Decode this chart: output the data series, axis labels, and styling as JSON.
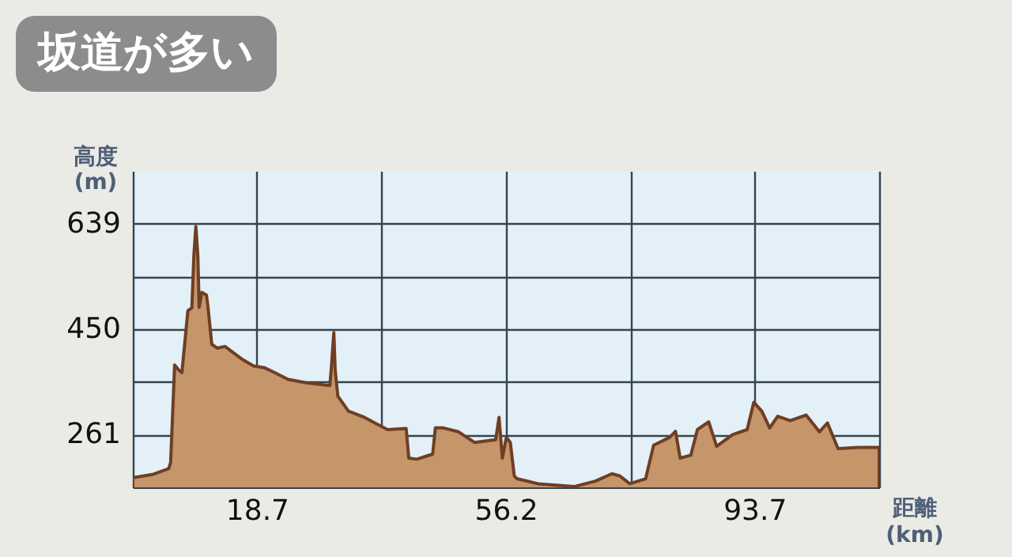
{
  "chart_data": {
    "type": "area",
    "title": "坂道が多い",
    "xlabel": "距離 (km)",
    "ylabel": "高度 (m)",
    "x": [
      0,
      3.1,
      5.4,
      5.7,
      6.3,
      6.9,
      7.4,
      8.3,
      8.9,
      9.2,
      9.5,
      9.8,
      10.0,
      10.4,
      11.1,
      11.3,
      11.9,
      12.7,
      13.9,
      15.0,
      16.6,
      18.2,
      19.8,
      21.4,
      23.4,
      26.1,
      29.7,
      29.9,
      30.3,
      30.5,
      30.9,
      32.5,
      34.9,
      36.8,
      38.4,
      41.2,
      41.6,
      42.8,
      45.2,
      45.6,
      46.8,
      49.1,
      51.5,
      54.7,
      55.2,
      55.7,
      56.3,
      56.9,
      57.5,
      57.9,
      61.1,
      66.6,
      69.8,
      72.2,
      73.4,
      74.9,
      77.3,
      78.5,
      80.9,
      81.8,
      82.5,
      84.1,
      85.1,
      86.8,
      88.0,
      90.4,
      92.6,
      93.6,
      94.8,
      96.0,
      97.2,
      99.1,
      101.5,
      103.5,
      104.7,
      106.3,
      109.4,
      112.5
    ],
    "values": [
      184,
      190,
      200,
      211,
      386,
      377,
      372,
      483,
      488,
      581,
      634,
      581,
      489,
      516,
      511,
      493,
      423,
      416,
      419,
      409,
      395,
      384,
      381,
      372,
      360,
      354,
      349,
      377,
      444,
      377,
      330,
      303,
      292,
      280,
      270,
      272,
      219,
      217,
      226,
      273,
      273,
      266,
      247,
      252,
      292,
      219,
      256,
      247,
      187,
      182,
      173,
      168,
      178,
      191,
      187,
      173,
      182,
      242,
      256,
      267,
      219,
      224,
      270,
      284,
      240,
      261,
      270,
      319,
      303,
      273,
      294,
      286,
      296,
      266,
      282,
      236,
      238,
      238
    ],
    "color": "#c4966a",
    "xlim": [
      0,
      112.5
    ],
    "xticks": [
      {
        "value": 0,
        "label": null
      },
      18.7,
      {
        "value": 37.5,
        "label": null
      },
      56.2,
      {
        "value": 75,
        "label": null
      },
      93.7,
      {
        "value": 112.5,
        "label": null
      }
    ],
    "ylim": [
      166.5,
      733.5
    ],
    "yticks": [
      261,
      {
        "value": 355.5,
        "label": null
      },
      450,
      {
        "value": 544.5,
        "label": null
      },
      639
    ],
    "grid": true
  }
}
